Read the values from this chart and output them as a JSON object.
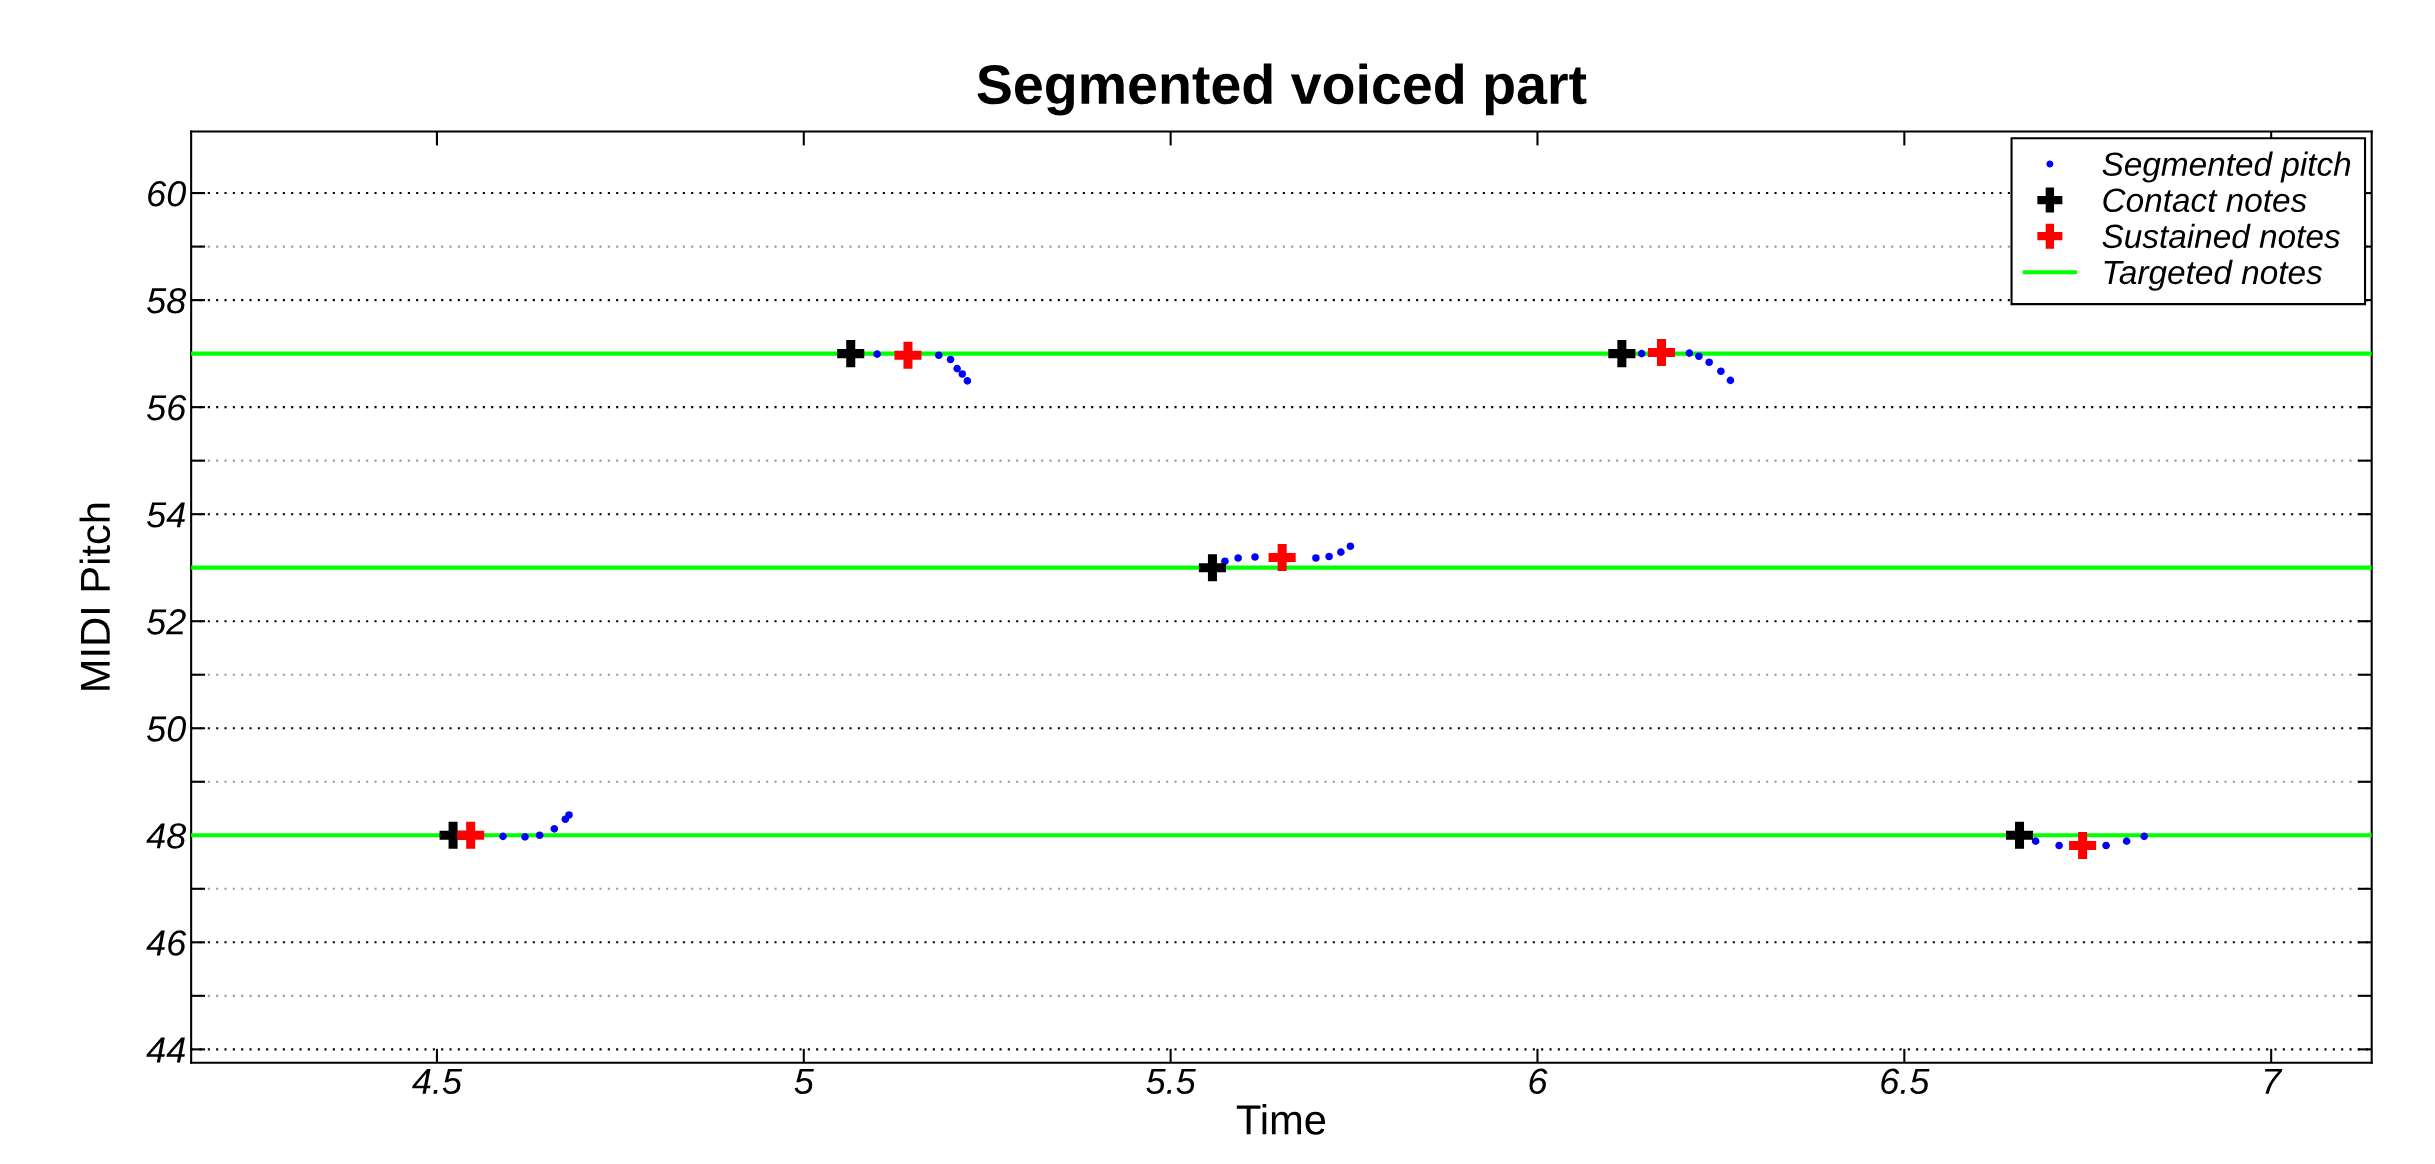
{
  "chart_data": {
    "type": "scatter",
    "title": "Segmented voiced part",
    "xlabel": "Time",
    "ylabel": "MIDI Pitch",
    "xlim": [
      4.165,
      7.137
    ],
    "ylim": [
      43.75,
      61.15
    ],
    "xticks": [
      4.5,
      5,
      5.5,
      6,
      6.5,
      7
    ],
    "yticks": [
      44,
      {
        "value": 45,
        "label": null
      },
      46,
      {
        "value": 47,
        "label": null
      },
      48,
      {
        "value": 49,
        "label": null
      },
      50,
      {
        "value": 51,
        "label": null
      },
      52,
      {
        "value": 53,
        "label": null
      },
      54,
      {
        "value": 55,
        "label": null
      },
      56,
      {
        "value": 57,
        "label": null
      },
      58,
      {
        "value": 59,
        "label": null
      },
      60
    ],
    "grid": "y",
    "legend": "top right",
    "series": [
      {
        "name": "Segmented pitch",
        "marker": "circle",
        "color": "#0000ff",
        "x": [
          4.59,
          4.62,
          4.64,
          4.66,
          4.675,
          4.68,
          5.1,
          5.184,
          5.2,
          5.209,
          5.216,
          5.223,
          5.574,
          5.592,
          5.615,
          5.698,
          5.716,
          5.732,
          5.745,
          6.142,
          6.207,
          6.22,
          6.234,
          6.25,
          6.263,
          6.679,
          6.711,
          6.775,
          6.803,
          6.827
        ],
        "values": [
          47.98,
          47.97,
          48.0,
          48.12,
          48.3,
          48.38,
          56.99,
          56.97,
          56.89,
          56.72,
          56.62,
          56.49,
          53.12,
          53.18,
          53.2,
          53.18,
          53.21,
          53.29,
          53.4,
          57.0,
          57.01,
          56.95,
          56.84,
          56.67,
          56.5,
          47.89,
          47.81,
          47.81,
          47.89,
          47.98
        ]
      },
      {
        "name": "Contact notes",
        "marker": "cross",
        "color": "#000000",
        "x": [
          4.522,
          5.064,
          5.557,
          6.115,
          6.657
        ],
        "values": [
          48.0,
          57.0,
          53.0,
          57.0,
          48.0
        ]
      },
      {
        "name": "Sustained notes",
        "marker": "cross",
        "color": "#ff0000",
        "x": [
          4.546,
          5.142,
          5.652,
          6.169,
          6.743
        ],
        "values": [
          48.0,
          56.97,
          53.19,
          57.02,
          47.81
        ]
      },
      {
        "name": "Targeted notes",
        "type": "line",
        "line_style": "solid",
        "color": "#00ff00",
        "x": [
          4.165,
          7.137
        ],
        "values": [
          48,
          48
        ]
      },
      {
        "type": "line",
        "line_style": "solid",
        "color": "#00ff00",
        "x": [
          4.165,
          7.137
        ],
        "values": [
          53,
          53
        ]
      },
      {
        "type": "line",
        "line_style": "solid",
        "color": "#00ff00",
        "x": [
          4.165,
          7.137
        ],
        "values": [
          57,
          57
        ]
      }
    ]
  }
}
